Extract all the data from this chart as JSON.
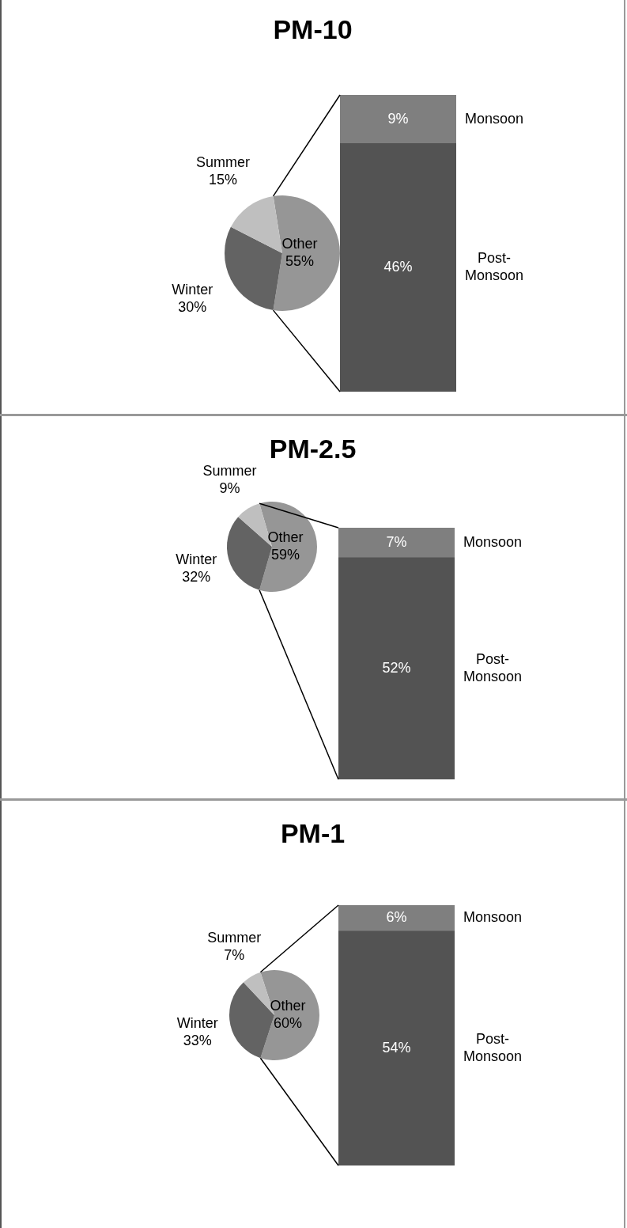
{
  "chart_data": [
    {
      "type": "pie",
      "title": "PM-10",
      "categories": [
        "Other",
        "Winter",
        "Summer"
      ],
      "values": [
        55,
        30,
        15
      ],
      "value_labels": [
        "55%",
        "30%",
        "15%"
      ],
      "colors": [
        "#969696",
        "#636363",
        "#bfbfbf"
      ]
    },
    {
      "type": "bar",
      "stacked": true,
      "categories": [
        null
      ],
      "series": [
        {
          "name": "Post-Monsoon",
          "color": "#535353",
          "values": [
            46
          ],
          "value_labels": [
            "46%"
          ]
        },
        {
          "name": "Monsoon",
          "color": "#7f7f7f",
          "values": [
            9
          ],
          "value_labels": [
            "9%"
          ]
        }
      ]
    },
    {
      "type": "pie",
      "title": "PM-2.5",
      "categories": [
        "Other",
        "Winter",
        "Summer"
      ],
      "values": [
        59,
        32,
        9
      ],
      "value_labels": [
        "59%",
        "32%",
        "9%"
      ],
      "colors": [
        "#969696",
        "#636363",
        "#bfbfbf"
      ]
    },
    {
      "type": "bar",
      "stacked": true,
      "categories": [
        null
      ],
      "series": [
        {
          "name": "Post-Monsoon",
          "color": "#535353",
          "values": [
            52
          ],
          "value_labels": [
            "52%"
          ]
        },
        {
          "name": "Monsoon",
          "color": "#7f7f7f",
          "values": [
            7
          ],
          "value_labels": [
            "7%"
          ]
        }
      ]
    },
    {
      "type": "pie",
      "title": "PM-1",
      "categories": [
        "Other",
        "Winter",
        "Summer"
      ],
      "values": [
        60,
        33,
        7
      ],
      "value_labels": [
        "60%",
        "33%",
        "7%"
      ],
      "colors": [
        "#969696",
        "#636363",
        "#bfbfbf"
      ]
    },
    {
      "type": "bar",
      "stacked": true,
      "categories": [
        null
      ],
      "series": [
        {
          "name": "Post-Monsoon",
          "color": "#535353",
          "values": [
            54
          ],
          "value_labels": [
            "54%"
          ]
        },
        {
          "name": "Monsoon",
          "color": "#7f7f7f",
          "values": [
            6
          ],
          "value_labels": [
            "6%"
          ]
        }
      ]
    }
  ]
}
